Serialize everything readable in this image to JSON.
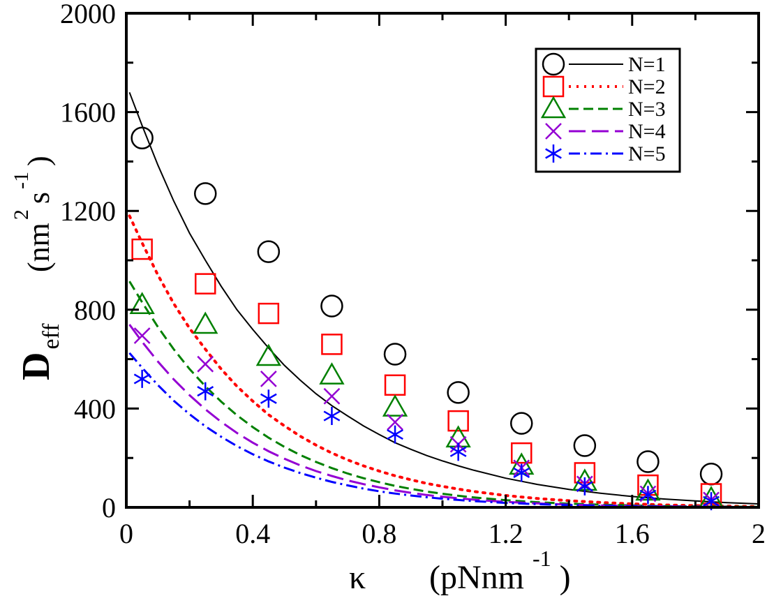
{
  "chart_data": {
    "type": "scatter",
    "title": "",
    "xlabel": {
      "symbol": "κ",
      "unit_base": "(pNnm",
      "unit_exp": "-1",
      "unit_close": ")"
    },
    "ylabel": {
      "base": "D",
      "subscript": "eff",
      "unit_open": "(nm",
      "exp_1": "2",
      "mid": "s",
      "exp_2": "-1",
      "unit_close": ")"
    },
    "xlim": [
      0,
      2
    ],
    "ylim": [
      0,
      2000
    ],
    "xticks": [
      0,
      0.4,
      0.8,
      1.2,
      1.6,
      2
    ],
    "xtick_labels": [
      "0",
      "0.4",
      "0.8",
      "1.2",
      "1.6",
      "2"
    ],
    "yticks": [
      0,
      400,
      800,
      1200,
      1600,
      2000
    ],
    "ytick_labels": [
      "0",
      "400",
      "800",
      "1200",
      "1600",
      "2000"
    ],
    "x_minor_step": 0.2,
    "y_minor_step": 200,
    "grid": false,
    "legend_position": "top-right",
    "series": [
      {
        "name": "N=1",
        "label": "N=1",
        "marker": "circle",
        "line_style": "solid",
        "color": "#000000",
        "points": {
          "x": [
            0.05,
            0.25,
            0.45,
            0.65,
            0.85,
            1.05,
            1.25,
            1.45,
            1.65,
            1.85
          ],
          "y": [
            1495,
            1270,
            1035,
            815,
            620,
            465,
            340,
            250,
            185,
            135
          ]
        },
        "curve": {
          "x": [
            0.01,
            0.05,
            0.1,
            0.15,
            0.2,
            0.25,
            0.3,
            0.35,
            0.4,
            0.45,
            0.5,
            0.55,
            0.6,
            0.65,
            0.7,
            0.75,
            0.8,
            0.85,
            0.9,
            0.95,
            1.0,
            1.05,
            1.1,
            1.2,
            1.3,
            1.4,
            1.5,
            1.6,
            1.7,
            1.8,
            1.9,
            2.0
          ],
          "y": [
            1680,
            1545,
            1385,
            1240,
            1110,
            1000,
            895,
            800,
            720,
            645,
            575,
            515,
            460,
            412,
            370,
            330,
            295,
            262,
            235,
            210,
            188,
            168,
            150,
            118,
            93,
            73,
            57,
            44,
            34,
            26,
            19,
            14
          ]
        }
      },
      {
        "name": "N=2",
        "label": "N=2",
        "marker": "square",
        "line_style": "dotted",
        "color": "#ff0000",
        "points": {
          "x": [
            0.05,
            0.25,
            0.45,
            0.65,
            0.85,
            1.05,
            1.25,
            1.45,
            1.65,
            1.85
          ],
          "y": [
            1045,
            905,
            785,
            660,
            495,
            350,
            220,
            140,
            90,
            55
          ]
        },
        "curve": {
          "x": [
            0.01,
            0.05,
            0.1,
            0.15,
            0.2,
            0.25,
            0.3,
            0.35,
            0.4,
            0.45,
            0.5,
            0.55,
            0.6,
            0.65,
            0.7,
            0.75,
            0.8,
            0.85,
            0.9,
            0.95,
            1.0,
            1.05,
            1.1,
            1.2,
            1.3,
            1.4,
            1.5,
            1.6,
            1.7,
            1.8,
            1.9,
            2.0
          ],
          "y": [
            1180,
            1070,
            940,
            825,
            725,
            640,
            560,
            490,
            430,
            375,
            330,
            288,
            252,
            220,
            192,
            168,
            147,
            128,
            112,
            97,
            85,
            74,
            64,
            48,
            36,
            27,
            20,
            14,
            10,
            7,
            5,
            3
          ]
        }
      },
      {
        "name": "N=3",
        "label": "N=3",
        "marker": "triangle",
        "line_style": "dashed",
        "color": "#008000",
        "points": {
          "x": [
            0.05,
            0.25,
            0.45,
            0.65,
            0.85,
            1.05,
            1.25,
            1.45,
            1.65,
            1.85
          ],
          "y": [
            820,
            740,
            610,
            535,
            405,
            280,
            170,
            105,
            65,
            35
          ]
        },
        "curve": {
          "x": [
            0.01,
            0.05,
            0.1,
            0.15,
            0.2,
            0.25,
            0.3,
            0.35,
            0.4,
            0.45,
            0.5,
            0.55,
            0.6,
            0.65,
            0.7,
            0.75,
            0.8,
            0.85,
            0.9,
            0.95,
            1.0,
            1.05,
            1.1,
            1.2,
            1.3,
            1.4,
            1.5,
            1.6,
            1.7,
            1.8,
            1.9,
            2.0
          ],
          "y": [
            915,
            830,
            730,
            640,
            560,
            490,
            428,
            373,
            325,
            282,
            245,
            212,
            184,
            159,
            137,
            118,
            102,
            87,
            75,
            64,
            55,
            47,
            40,
            29,
            21,
            15,
            11,
            8,
            5,
            4,
            3,
            2
          ]
        }
      },
      {
        "name": "N=4",
        "label": "N=4",
        "marker": "x",
        "line_style": "long-dashed",
        "color": "#9400d3",
        "points": {
          "x": [
            0.05,
            0.25,
            0.45,
            0.65,
            0.85,
            1.05,
            1.25,
            1.45,
            1.65,
            1.85
          ],
          "y": [
            695,
            580,
            520,
            450,
            345,
            255,
            160,
            95,
            55,
            30
          ]
        },
        "curve": {
          "x": [
            0.01,
            0.05,
            0.1,
            0.15,
            0.2,
            0.25,
            0.3,
            0.35,
            0.4,
            0.45,
            0.5,
            0.55,
            0.6,
            0.65,
            0.7,
            0.75,
            0.8,
            0.85,
            0.9,
            0.95,
            1.0,
            1.05,
            1.1,
            1.2,
            1.3,
            1.4,
            1.5,
            1.6,
            1.7,
            1.8,
            1.9,
            2.0
          ],
          "y": [
            740,
            670,
            590,
            518,
            454,
            397,
            346,
            301,
            262,
            227,
            197,
            170,
            147,
            127,
            109,
            94,
            81,
            69,
            59,
            50,
            43,
            37,
            31,
            22,
            16,
            11,
            8,
            6,
            4,
            3,
            2,
            1
          ]
        }
      },
      {
        "name": "N=5",
        "label": "N=5",
        "marker": "star",
        "line_style": "dash-dot",
        "color": "#0000ff",
        "points": {
          "x": [
            0.05,
            0.25,
            0.45,
            0.65,
            0.85,
            1.05,
            1.25,
            1.45,
            1.65,
            1.85
          ],
          "y": [
            520,
            470,
            440,
            370,
            295,
            225,
            140,
            85,
            50,
            25
          ]
        },
        "curve": {
          "x": [
            0.01,
            0.05,
            0.1,
            0.15,
            0.2,
            0.25,
            0.3,
            0.35,
            0.4,
            0.45,
            0.5,
            0.55,
            0.6,
            0.65,
            0.7,
            0.75,
            0.8,
            0.85,
            0.9,
            0.95,
            1.0,
            1.05,
            1.1,
            1.2,
            1.3,
            1.4,
            1.5,
            1.6,
            1.7,
            1.8,
            1.9,
            2.0
          ],
          "y": [
            625,
            565,
            495,
            432,
            377,
            328,
            286,
            248,
            215,
            186,
            161,
            139,
            120,
            103,
            89,
            76,
            65,
            56,
            48,
            41,
            35,
            30,
            25,
            18,
            13,
            9,
            6,
            4,
            3,
            2,
            1,
            1
          ]
        }
      }
    ]
  }
}
